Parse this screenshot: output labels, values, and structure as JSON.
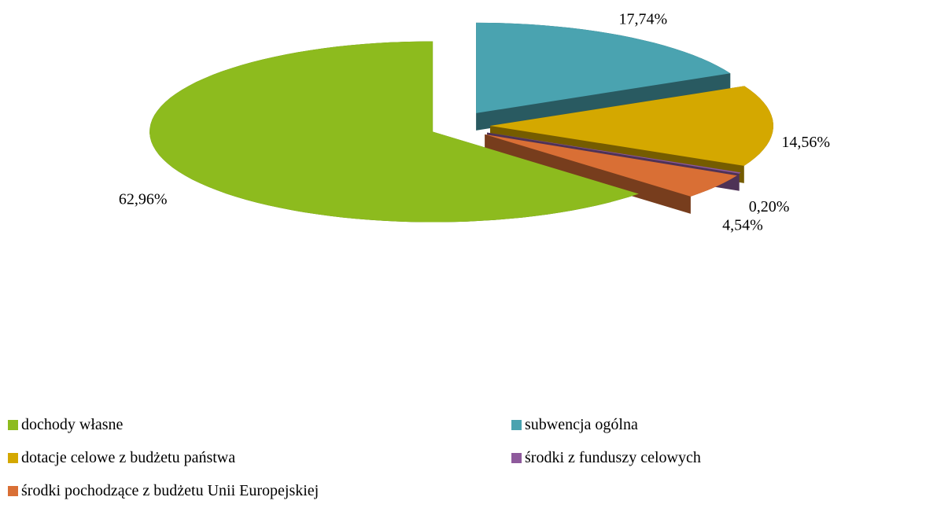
{
  "chart_data": {
    "type": "pie",
    "categories": [
      "dochody własne",
      "subwencja ogólna",
      "dotacje celowe z budżetu państwa",
      "środki z funduszy celowych",
      "środki pochodzące z budżetu Unii Europejskiej"
    ],
    "values": [
      62.96,
      17.74,
      14.56,
      0.2,
      4.54
    ],
    "value_labels": [
      "62,96%",
      "17,74%",
      "14,56%",
      "0,20%",
      "4,54%"
    ],
    "colors": [
      "#8dbb1e",
      "#4aa3b0",
      "#d4a800",
      "#8e5a9c",
      "#d96f35"
    ],
    "legend": "bottom"
  }
}
